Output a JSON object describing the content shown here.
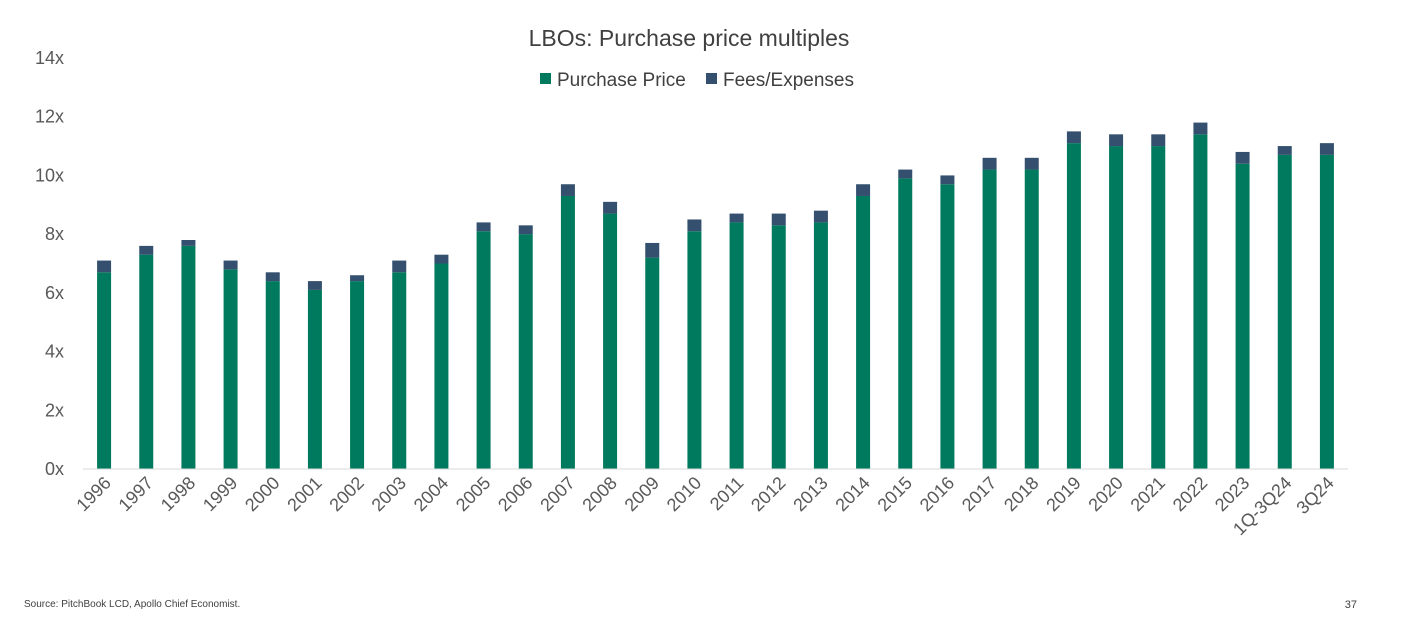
{
  "chart_data": {
    "type": "bar",
    "stacked": true,
    "title": "LBOs: Purchase price multiples",
    "categories": [
      "1996",
      "1997",
      "1998",
      "1999",
      "2000",
      "2001",
      "2002",
      "2003",
      "2004",
      "2005",
      "2006",
      "2007",
      "2008",
      "2009",
      "2010",
      "2011",
      "2012",
      "2013",
      "2014",
      "2015",
      "2016",
      "2017",
      "2018",
      "2019",
      "2020",
      "2021",
      "2022",
      "2023",
      "1Q-3Q24",
      "3Q24"
    ],
    "series": [
      {
        "name": "Purchase Price",
        "color": "#007A5E",
        "values": [
          6.7,
          7.3,
          7.6,
          6.8,
          6.4,
          6.1,
          6.4,
          6.7,
          7.0,
          8.1,
          8.0,
          9.3,
          8.7,
          7.2,
          8.1,
          8.4,
          8.3,
          8.4,
          9.3,
          9.9,
          9.7,
          10.2,
          10.2,
          11.1,
          11.0,
          11.0,
          11.4,
          10.4,
          10.7,
          10.7
        ]
      },
      {
        "name": "Fees/Expenses",
        "color": "#34506E",
        "values": [
          0.4,
          0.3,
          0.2,
          0.3,
          0.3,
          0.3,
          0.2,
          0.4,
          0.3,
          0.3,
          0.3,
          0.4,
          0.4,
          0.5,
          0.4,
          0.3,
          0.4,
          0.4,
          0.4,
          0.3,
          0.3,
          0.4,
          0.4,
          0.4,
          0.4,
          0.4,
          0.4,
          0.4,
          0.3,
          0.4
        ]
      }
    ],
    "ylim": [
      0,
      14
    ],
    "yticks": [
      0,
      2,
      4,
      6,
      8,
      10,
      12,
      14
    ],
    "ytick_suffix": "x",
    "xlabel": "",
    "ylabel": "",
    "legend_position": "top-center",
    "grid": false
  },
  "footer": {
    "source": "Source: PitchBook LCD, Apollo Chief Economist.",
    "page_number": "37"
  }
}
